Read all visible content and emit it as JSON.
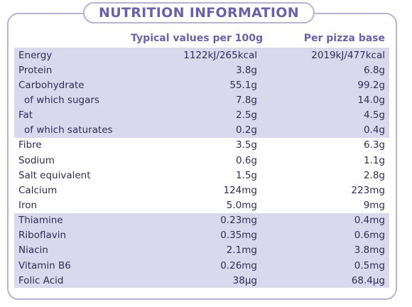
{
  "title": "NUTRITION INFORMATION",
  "columns": {
    "per_100g": "Typical values per 100g",
    "per_base": "Per pizza base"
  },
  "groups": [
    {
      "shade": "lavender",
      "rows": [
        {
          "name": "Energy",
          "v1": "1122kJ/265kcal",
          "v2": "2019kJ/477kcal"
        },
        {
          "name": "Protein",
          "v1": "3.8g",
          "v2": "6.8g"
        },
        {
          "name": "Carbohydrate",
          "v1": "55.1g",
          "v2": "99.2g"
        },
        {
          "name": "of which sugars",
          "v1": "7.8g",
          "v2": "14.0g",
          "indent": true
        },
        {
          "name": "Fat",
          "v1": "2.5g",
          "v2": "4.5g"
        },
        {
          "name": "of which saturates",
          "v1": "0.2g",
          "v2": "0.4g",
          "indent": true
        }
      ]
    },
    {
      "shade": "white",
      "rows": [
        {
          "name": "Fibre",
          "v1": "3.5g",
          "v2": "6.3g"
        },
        {
          "name": "Sodium",
          "v1": "0.6g",
          "v2": "1.1g"
        },
        {
          "name": "Salt equivalent",
          "v1": "1.5g",
          "v2": "2.8g"
        },
        {
          "name": "Calcium",
          "v1": "124mg",
          "v2": "223mg"
        },
        {
          "name": "Iron",
          "v1": "5.0mg",
          "v2": "9mg"
        }
      ]
    },
    {
      "shade": "lavender",
      "rows": [
        {
          "name": "Thiamine",
          "v1": "0.23mg",
          "v2": "0.4mg"
        },
        {
          "name": "Riboflavin",
          "v1": "0.35mg",
          "v2": "0.6mg"
        },
        {
          "name": "Niacin",
          "v1": "2.1mg",
          "v2": "3.8mg"
        },
        {
          "name": "Vitamin B6",
          "v1": "0.26mg",
          "v2": "0.5mg"
        },
        {
          "name": "Folic Acid",
          "v1": "38µg",
          "v2": "68.4µg"
        }
      ]
    }
  ],
  "colors": {
    "accent": "#6a62a8",
    "border": "#b7b3d6",
    "band": "#dad8ec",
    "text": "#2f2d55"
  }
}
